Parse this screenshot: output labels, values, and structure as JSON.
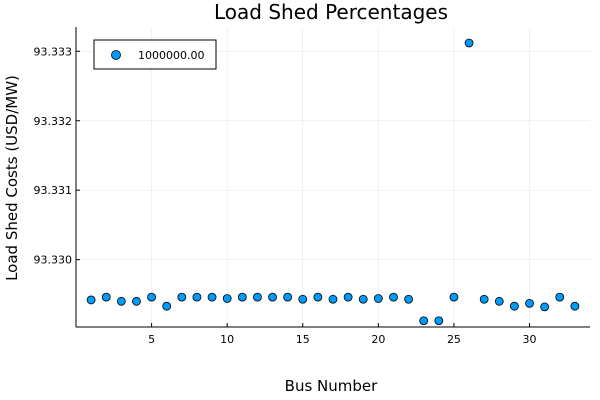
{
  "chart_data": {
    "type": "scatter",
    "title": "Load Shed Percentages",
    "xlabel": "Bus Number",
    "ylabel": "Load Shed Costs (USD/MW)",
    "xlim": [
      0,
      34
    ],
    "ylim": [
      93.32903,
      93.33335
    ],
    "x_ticks": [
      5,
      10,
      15,
      20,
      25,
      30
    ],
    "y_ticks": [
      93.33,
      93.331,
      93.332,
      93.333
    ],
    "x_tick_labels": [
      "5",
      "10",
      "15",
      "20",
      "25",
      "30"
    ],
    "y_tick_labels": [
      "93.330",
      "93.331",
      "93.332",
      "93.333"
    ],
    "grid": true,
    "legend_position": "top-left",
    "series": [
      {
        "name": "1000000.00",
        "color": "#009AFA",
        "x": [
          1,
          2,
          3,
          4,
          5,
          6,
          7,
          8,
          9,
          10,
          11,
          12,
          13,
          14,
          15,
          16,
          17,
          18,
          19,
          20,
          21,
          22,
          23,
          24,
          25,
          26,
          27,
          28,
          29,
          30,
          31,
          32,
          33
        ],
        "y": [
          93.32942,
          93.32946,
          93.3294,
          93.3294,
          93.32946,
          93.32933,
          93.32946,
          93.32946,
          93.32946,
          93.32944,
          93.32946,
          93.32946,
          93.32946,
          93.32946,
          93.32943,
          93.32946,
          93.32943,
          93.32946,
          93.32943,
          93.32944,
          93.32946,
          93.32943,
          93.32912,
          93.32912,
          93.32946,
          93.33312,
          93.32943,
          93.3294,
          93.32933,
          93.32937,
          93.32932,
          93.32946,
          93.32933
        ]
      }
    ]
  }
}
